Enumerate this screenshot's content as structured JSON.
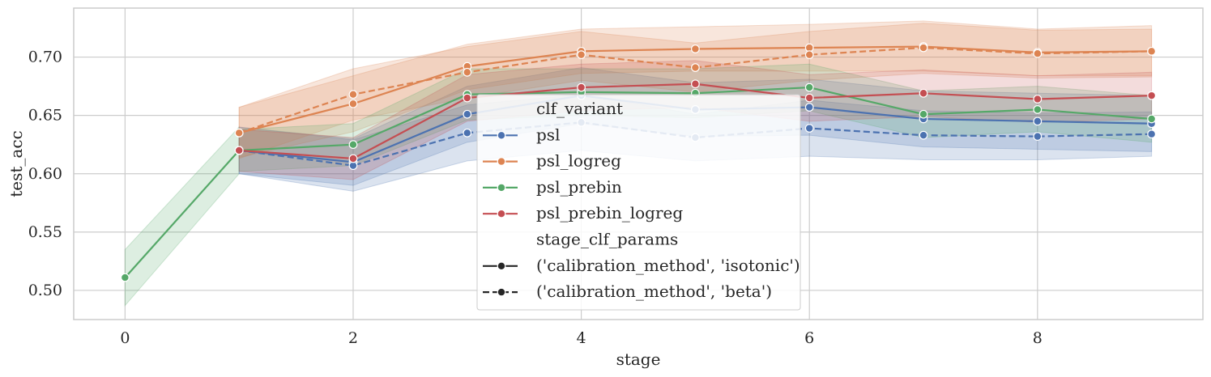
{
  "chart_data": {
    "type": "line",
    "xlabel": "stage",
    "ylabel": "test_acc",
    "xlim": [
      -0.45,
      9.45
    ],
    "ylim": [
      0.475,
      0.742
    ],
    "xticks": [
      0,
      2,
      4,
      6,
      8
    ],
    "xtick_labels": [
      "0",
      "2",
      "4",
      "6",
      "8"
    ],
    "yticks": [
      0.5,
      0.55,
      0.6,
      0.65,
      0.7
    ],
    "ytick_labels": [
      "0.50",
      "0.55",
      "0.60",
      "0.65",
      "0.70"
    ],
    "grid": true,
    "legend_placement": "lower-center",
    "legend": {
      "hue_title": "clf_variant",
      "style_title": "stage_clf_params",
      "hue_entries": [
        {
          "label": "psl",
          "color": "#4c72b0"
        },
        {
          "label": "psl_logreg",
          "color": "#dd8452"
        },
        {
          "label": "psl_prebin",
          "color": "#55a868"
        },
        {
          "label": "psl_prebin_logreg",
          "color": "#c44e52"
        }
      ],
      "style_entries": [
        {
          "label": "('calibration_method', 'isotonic')",
          "dash": "solid"
        },
        {
          "label": "('calibration_method', 'beta')",
          "dash": "dashed"
        }
      ]
    },
    "series": [
      {
        "variant": "psl_prebin",
        "style": "isotonic",
        "color": "#55a868",
        "dash": "solid",
        "x": [
          0,
          1
        ],
        "y": [
          0.511,
          0.62
        ],
        "lower": [
          0.487,
          0.6
        ],
        "upper": [
          0.535,
          0.64
        ]
      },
      {
        "variant": "psl",
        "style": "isotonic",
        "color": "#4c72b0",
        "dash": "solid",
        "x": [
          1,
          2,
          3,
          4,
          5,
          6,
          7,
          8,
          9
        ],
        "y": [
          0.62,
          0.61,
          0.651,
          0.667,
          0.655,
          0.657,
          0.647,
          0.645,
          0.643
        ],
        "lower": [
          0.6,
          0.59,
          0.627,
          0.643,
          0.632,
          0.633,
          0.623,
          0.621,
          0.619
        ],
        "upper": [
          0.64,
          0.63,
          0.675,
          0.691,
          0.678,
          0.681,
          0.671,
          0.669,
          0.667
        ]
      },
      {
        "variant": "psl",
        "style": "beta",
        "color": "#4c72b0",
        "dash": "dashed",
        "x": [
          1,
          2,
          3,
          4,
          5,
          6,
          7,
          8,
          9
        ],
        "y": [
          0.62,
          0.607,
          0.635,
          0.644,
          0.631,
          0.639,
          0.633,
          0.632,
          0.634
        ],
        "lower": [
          0.6,
          0.585,
          0.611,
          0.62,
          0.611,
          0.615,
          0.612,
          0.612,
          0.615
        ],
        "upper": [
          0.64,
          0.629,
          0.659,
          0.668,
          0.651,
          0.663,
          0.654,
          0.652,
          0.653
        ]
      },
      {
        "variant": "psl_logreg",
        "style": "isotonic",
        "color": "#dd8452",
        "dash": "solid",
        "x": [
          1,
          2,
          3,
          4,
          5,
          6,
          7,
          8,
          9
        ],
        "y": [
          0.635,
          0.66,
          0.692,
          0.705,
          0.707,
          0.708,
          0.709,
          0.704,
          0.705
        ],
        "lower": [
          0.614,
          0.636,
          0.672,
          0.686,
          0.688,
          0.688,
          0.688,
          0.684,
          0.684
        ],
        "upper": [
          0.657,
          0.684,
          0.711,
          0.724,
          0.726,
          0.728,
          0.731,
          0.724,
          0.727
        ]
      },
      {
        "variant": "psl_logreg",
        "style": "beta",
        "color": "#dd8452",
        "dash": "dashed",
        "x": [
          1,
          2,
          3,
          4,
          5,
          6,
          7,
          8,
          9
        ],
        "y": [
          0.635,
          0.668,
          0.687,
          0.702,
          0.691,
          0.702,
          0.708,
          0.703,
          0.705
        ],
        "lower": [
          0.613,
          0.646,
          0.665,
          0.68,
          0.67,
          0.68,
          0.686,
          0.682,
          0.683
        ],
        "upper": [
          0.657,
          0.69,
          0.709,
          0.722,
          0.712,
          0.722,
          0.729,
          0.723,
          0.724
        ]
      },
      {
        "variant": "psl_prebin",
        "style": "isotonic",
        "color": "#55a868",
        "dash": "solid",
        "x": [
          1,
          2,
          3,
          4,
          5,
          6,
          7,
          8,
          9
        ],
        "y": [
          0.62,
          0.625,
          0.668,
          0.67,
          0.669,
          0.674,
          0.651,
          0.655,
          0.647
        ],
        "lower": [
          0.602,
          0.607,
          0.646,
          0.65,
          0.648,
          0.654,
          0.631,
          0.636,
          0.627
        ],
        "upper": [
          0.638,
          0.643,
          0.69,
          0.69,
          0.69,
          0.694,
          0.671,
          0.675,
          0.667
        ]
      },
      {
        "variant": "psl_prebin_logreg",
        "style": "isotonic",
        "color": "#c44e52",
        "dash": "solid",
        "x": [
          1,
          2,
          3,
          4,
          5,
          6,
          7,
          8,
          9
        ],
        "y": [
          0.62,
          0.613,
          0.665,
          0.674,
          0.677,
          0.665,
          0.669,
          0.664,
          0.667
        ],
        "lower": [
          0.602,
          0.595,
          0.645,
          0.654,
          0.657,
          0.645,
          0.649,
          0.644,
          0.647
        ],
        "upper": [
          0.638,
          0.631,
          0.685,
          0.694,
          0.697,
          0.685,
          0.689,
          0.684,
          0.687
        ]
      }
    ]
  }
}
